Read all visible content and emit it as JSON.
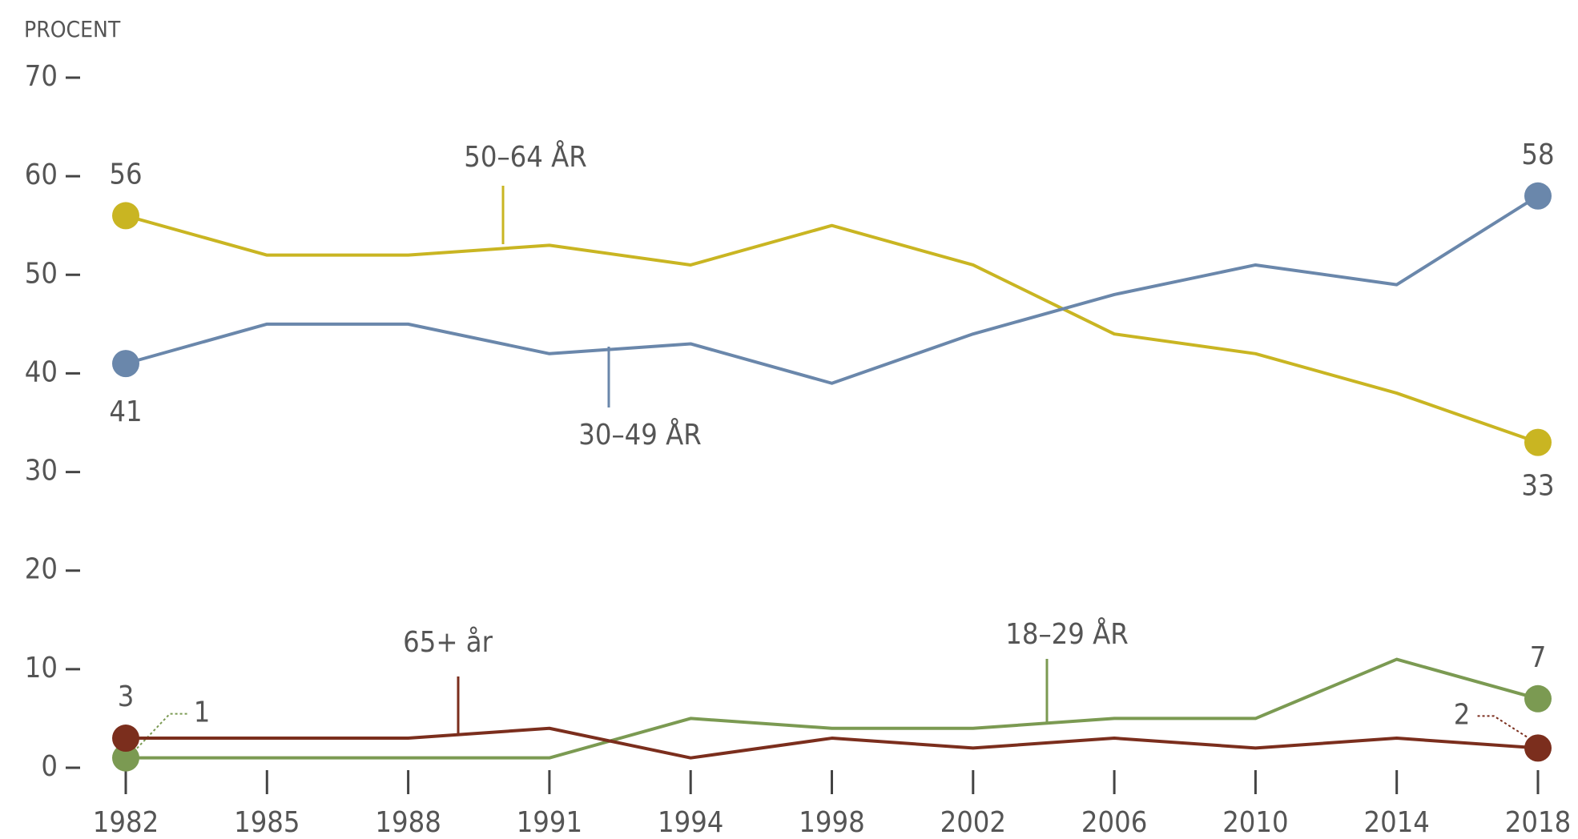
{
  "chart_data": {
    "type": "line",
    "y_label": "PROCENT",
    "categories": [
      "1982",
      "1985",
      "1988",
      "1991",
      "1994",
      "1998",
      "2002",
      "2006",
      "2010",
      "2014",
      "2018"
    ],
    "ylim": [
      0,
      70
    ],
    "yticks": [
      0,
      10,
      20,
      30,
      40,
      50,
      60,
      70
    ],
    "series": [
      {
        "name": "50–64 ÅR",
        "color": "#c9b522",
        "values": [
          56,
          52,
          52,
          53,
          51,
          55,
          51,
          44,
          42,
          38,
          33
        ]
      },
      {
        "name": "30–49 ÅR",
        "color": "#6a87ab",
        "values": [
          41,
          45,
          45,
          42,
          43,
          39,
          44,
          48,
          51,
          49,
          58
        ]
      },
      {
        "name": "18–29 ÅR",
        "color": "#7b9a52",
        "values": [
          1,
          1,
          1,
          1,
          5,
          4,
          4,
          5,
          5,
          11,
          7
        ]
      },
      {
        "name": "65+ år",
        "color": "#7b2e1d",
        "values": [
          3,
          3,
          3,
          4,
          1,
          3,
          2,
          3,
          2,
          3,
          2
        ]
      }
    ]
  }
}
